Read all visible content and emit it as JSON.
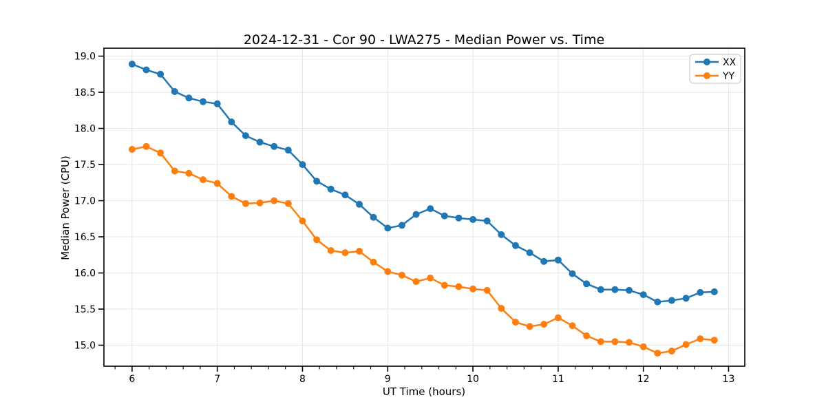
{
  "figure": {
    "title": "2024-12-31 - Cor 90 - LWA275 - Median Power vs. Time",
    "xlabel": "UT Time (hours)",
    "ylabel": "Median Power (CPU)"
  },
  "colors": {
    "background": "#ffffff",
    "grid": "#e6e6e6",
    "axis": "#000000",
    "series_xx": "#1f77b4",
    "series_yy": "#ff7f0e",
    "legend_border": "#cccccc",
    "legend_fill": "#ffffff"
  },
  "legend": {
    "position": "upper right",
    "items": [
      {
        "label": "XX",
        "color": "#1f77b4"
      },
      {
        "label": "YY",
        "color": "#ff7f0e"
      }
    ]
  },
  "chart_data": {
    "type": "line",
    "title": "2024-12-31 - Cor 90 - LWA275 - Median Power vs. Time",
    "xlabel": "UT Time (hours)",
    "ylabel": "Median Power (CPU)",
    "xlim": [
      5.67,
      13.19
    ],
    "ylim": [
      14.71,
      19.11
    ],
    "x_ticks": [
      6,
      7,
      8,
      9,
      10,
      11,
      12,
      13
    ],
    "y_ticks": [
      15.0,
      15.5,
      16.0,
      16.5,
      17.0,
      17.5,
      18.0,
      18.5,
      19.0
    ],
    "x_minor_tick_step": 0.2,
    "grid": true,
    "legend_position": "upper right",
    "marker": "circle",
    "x": [
      6.0,
      6.167,
      6.333,
      6.5,
      6.667,
      6.833,
      7.0,
      7.167,
      7.333,
      7.5,
      7.667,
      7.833,
      8.0,
      8.167,
      8.333,
      8.5,
      8.667,
      8.833,
      9.0,
      9.167,
      9.333,
      9.5,
      9.667,
      9.833,
      10.0,
      10.167,
      10.333,
      10.5,
      10.667,
      10.833,
      11.0,
      11.167,
      11.333,
      11.5,
      11.667,
      11.833,
      12.0,
      12.167,
      12.333,
      12.5,
      12.667,
      12.833
    ],
    "series": [
      {
        "name": "XX",
        "color": "#1f77b4",
        "values": [
          18.89,
          18.81,
          18.75,
          18.51,
          18.42,
          18.37,
          18.34,
          18.09,
          17.9,
          17.81,
          17.75,
          17.7,
          17.5,
          17.27,
          17.16,
          17.08,
          16.95,
          16.77,
          16.62,
          16.66,
          16.81,
          16.89,
          16.79,
          16.76,
          16.74,
          16.72,
          16.53,
          16.38,
          16.28,
          16.16,
          16.18,
          15.99,
          15.85,
          15.77,
          15.77,
          15.76,
          15.7,
          15.6,
          15.62,
          15.65,
          15.73,
          15.74
        ]
      },
      {
        "name": "YY",
        "color": "#ff7f0e",
        "values": [
          17.71,
          17.75,
          17.66,
          17.41,
          17.38,
          17.29,
          17.24,
          17.06,
          16.96,
          16.97,
          17.0,
          16.96,
          16.72,
          16.46,
          16.31,
          16.28,
          16.3,
          16.15,
          16.02,
          15.97,
          15.88,
          15.93,
          15.83,
          15.81,
          15.78,
          15.76,
          15.51,
          15.32,
          15.26,
          15.29,
          15.38,
          15.27,
          15.13,
          15.05,
          15.05,
          15.04,
          14.98,
          14.89,
          14.92,
          15.01,
          15.09,
          15.07
        ]
      }
    ]
  }
}
